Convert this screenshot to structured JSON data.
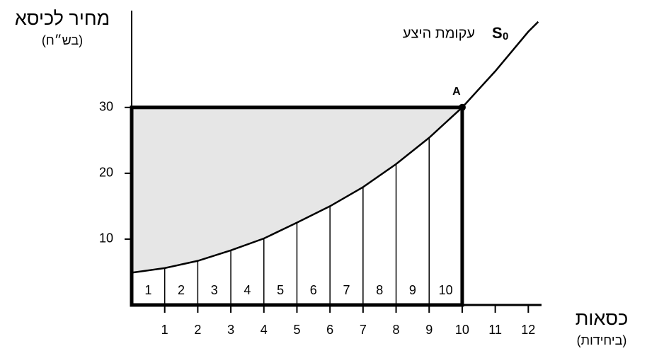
{
  "chart_data": {
    "type": "line",
    "y_label": "מחיר לכיסא",
    "y_unit": "(בש״ח)",
    "x_label": "כסאות",
    "x_unit": "(ביחידות)",
    "xlim": [
      0,
      12.4
    ],
    "ylim": [
      0,
      44.7
    ],
    "xticks": [
      1,
      2,
      3,
      4,
      5,
      6,
      7,
      8,
      9,
      10,
      11,
      12
    ],
    "yticks": [
      10,
      20,
      30
    ],
    "series": [
      {
        "name": "עקומת היצע",
        "symbol": "S",
        "symbol_subscript": "0",
        "color": "#000000",
        "x": [
          0,
          1,
          2,
          3,
          4,
          5,
          6,
          7,
          8,
          9,
          10,
          11,
          12,
          12.3
        ],
        "values": [
          4.9,
          5.6,
          6.7,
          8.3,
          10.1,
          12.5,
          15,
          17.9,
          21.4,
          25.4,
          30,
          35.5,
          41.5,
          43
        ]
      }
    ],
    "point": {
      "label": "A",
      "x": 10,
      "y": 30
    },
    "segment_labels": [
      1,
      2,
      3,
      4,
      5,
      6,
      7,
      8,
      9,
      10
    ],
    "shade_color": "#e6e6e6"
  }
}
